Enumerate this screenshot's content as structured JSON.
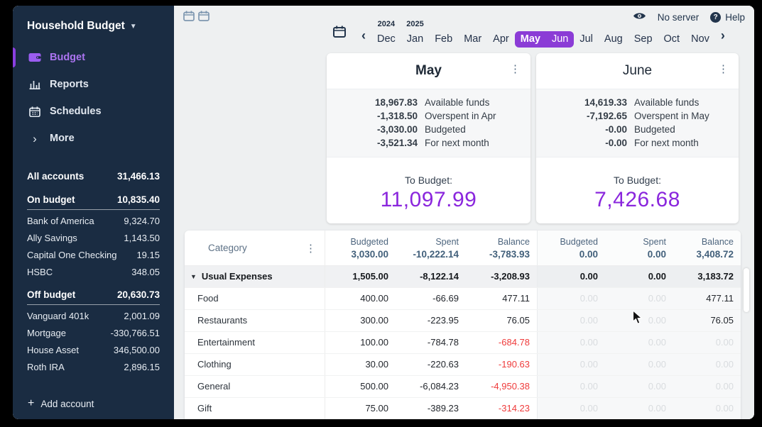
{
  "colors": {
    "sidebar_bg": "#1a2c42",
    "accent_purple": "#8a26dd",
    "month_pill_purple": "#8b3cd6",
    "negative_red": "#ef3b3b",
    "navy_text": "#22354c"
  },
  "sidebar": {
    "title": "Household Budget",
    "nav": [
      {
        "label": "Budget",
        "icon": "wallet-icon",
        "active": true
      },
      {
        "label": "Reports",
        "icon": "bar-chart-icon",
        "active": false
      },
      {
        "label": "Schedules",
        "icon": "calendar-icon",
        "active": false
      },
      {
        "label": "More",
        "icon": "chevron-right-icon",
        "active": false
      }
    ],
    "all_accounts": {
      "label": "All accounts",
      "value": "31,466.13"
    },
    "groups": [
      {
        "label": "On budget",
        "value": "10,835.40",
        "accounts": [
          {
            "name": "Bank of America",
            "value": "9,324.70"
          },
          {
            "name": "Ally Savings",
            "value": "1,143.50"
          },
          {
            "name": "Capital One Checking",
            "value": "19.15"
          },
          {
            "name": "HSBC",
            "value": "348.05"
          }
        ]
      },
      {
        "label": "Off budget",
        "value": "20,630.73",
        "accounts": [
          {
            "name": "Vanguard 401k",
            "value": "2,001.09"
          },
          {
            "name": "Mortgage",
            "value": "-330,766.51"
          },
          {
            "name": "House Asset",
            "value": "346,500.00"
          },
          {
            "name": "Roth IRA",
            "value": "2,896.15"
          }
        ]
      }
    ],
    "add_account_label": "Add account"
  },
  "topbar": {
    "view_toggle_icons": [
      "one-month-calendar-icon",
      "two-month-calendar-icon"
    ],
    "privacy_icon": "eye-icon",
    "no_server_label": "No server",
    "help_icon": "question-circle-icon",
    "help_label": "Help"
  },
  "month_nav": {
    "prev_icon": "chevron-left-icon",
    "next_icon": "chevron-right-icon",
    "calendar_icon": "calendar-icon",
    "months": [
      {
        "label": "Dec",
        "year": "2024"
      },
      {
        "label": "Jan",
        "year": "2025"
      },
      {
        "label": "Feb"
      },
      {
        "label": "Mar"
      },
      {
        "label": "Apr"
      },
      {
        "label": "May",
        "selected": true,
        "current": true
      },
      {
        "label": "Jun",
        "selected": true
      },
      {
        "label": "Jul"
      },
      {
        "label": "Aug"
      },
      {
        "label": "Sep"
      },
      {
        "label": "Oct"
      },
      {
        "label": "Nov"
      }
    ]
  },
  "month_cards": [
    {
      "title": "May",
      "current": true,
      "menu_icon": "kebab-menu-icon",
      "stats": [
        {
          "value": "18,967.83",
          "label": "Available funds"
        },
        {
          "value": "-1,318.50",
          "label": "Overspent in Apr"
        },
        {
          "value": "-3,030.00",
          "label": "Budgeted"
        },
        {
          "value": "-3,521.34",
          "label": "For next month"
        }
      ],
      "to_budget_label": "To Budget:",
      "to_budget_value": "11,097.99"
    },
    {
      "title": "June",
      "current": false,
      "menu_icon": "kebab-menu-icon",
      "stats": [
        {
          "value": "14,619.33",
          "label": "Available funds"
        },
        {
          "value": "-7,192.65",
          "label": "Overspent in May"
        },
        {
          "value": "-0.00",
          "label": "Budgeted"
        },
        {
          "value": "-0.00",
          "label": "For next month"
        }
      ],
      "to_budget_label": "To Budget:",
      "to_budget_value": "7,426.68"
    }
  ],
  "table": {
    "category_header": "Category",
    "category_menu_icon": "kebab-menu-icon",
    "column_labels": [
      "Budgeted",
      "Spent",
      "Balance"
    ],
    "totals": [
      "3,030.00",
      "-10,222.14",
      "-3,783.93",
      "0.00",
      "0.00",
      "3,408.72"
    ],
    "group": {
      "name": "Usual Expenses",
      "collapse_icon": "triangle-down-icon",
      "cells": [
        "1,505.00",
        "-8,122.14",
        "-3,208.93",
        "0.00",
        "0.00",
        "3,183.72"
      ]
    },
    "rows": [
      {
        "name": "Food",
        "cells": [
          "400.00",
          "-66.69",
          "477.11",
          "0.00",
          "0.00",
          "477.11"
        ],
        "red": [],
        "faded": [
          3,
          4
        ]
      },
      {
        "name": "Restaurants",
        "cells": [
          "300.00",
          "-223.95",
          "76.05",
          "0.00",
          "0.00",
          "76.05"
        ],
        "red": [],
        "faded": [
          3,
          4
        ]
      },
      {
        "name": "Entertainment",
        "cells": [
          "100.00",
          "-784.78",
          "-684.78",
          "0.00",
          "0.00",
          "0.00"
        ],
        "red": [
          2
        ],
        "faded": [
          3,
          4,
          5
        ]
      },
      {
        "name": "Clothing",
        "cells": [
          "30.00",
          "-220.63",
          "-190.63",
          "0.00",
          "0.00",
          "0.00"
        ],
        "red": [
          2
        ],
        "faded": [
          3,
          4,
          5
        ]
      },
      {
        "name": "General",
        "cells": [
          "500.00",
          "-6,084.23",
          "-4,950.38",
          "0.00",
          "0.00",
          "0.00"
        ],
        "red": [
          2
        ],
        "faded": [
          3,
          4,
          5
        ]
      },
      {
        "name": "Gift",
        "cells": [
          "75.00",
          "-389.23",
          "-314.23",
          "0.00",
          "0.00",
          "0.00"
        ],
        "red": [
          2
        ],
        "faded": [
          3,
          4,
          5
        ]
      }
    ]
  }
}
